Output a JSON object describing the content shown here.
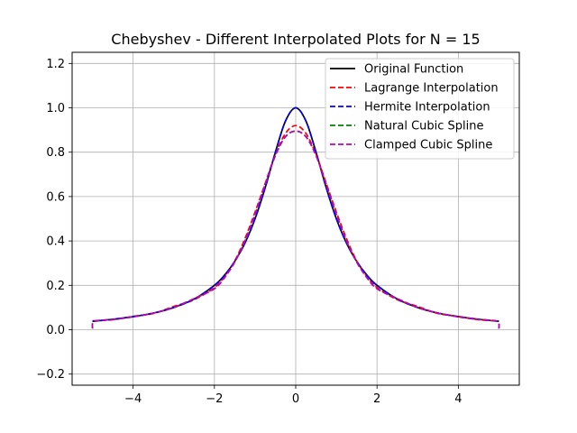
{
  "chart_data": {
    "type": "line",
    "title": "Chebyshev - Different Interpolated Plots for N = 15",
    "xlabel": "",
    "ylabel": "",
    "xlim": [
      -5.5,
      5.5
    ],
    "ylim": [
      -0.25,
      1.25
    ],
    "xticks": [
      -4,
      -2,
      0,
      2,
      4
    ],
    "yticks": [
      -0.2,
      0.0,
      0.2,
      0.4,
      0.6,
      0.8,
      1.0,
      1.2
    ],
    "grid": true,
    "legend": "top-right",
    "series": [
      {
        "name": "Original Function",
        "color": "#000000",
        "dash": "solid",
        "x": [
          -5,
          -4.5,
          -4,
          -3.5,
          -3,
          -2.5,
          -2,
          -1.75,
          -1.5,
          -1.25,
          -1,
          -0.75,
          -0.5,
          -0.25,
          0,
          0.25,
          0.5,
          0.75,
          1,
          1.25,
          1.5,
          1.75,
          2,
          2.5,
          3,
          3.5,
          4,
          4.5,
          5
        ],
        "y": [
          0.038,
          0.047,
          0.059,
          0.075,
          0.1,
          0.138,
          0.2,
          0.246,
          0.308,
          0.39,
          0.5,
          0.64,
          0.8,
          0.941,
          1.0,
          0.941,
          0.8,
          0.64,
          0.5,
          0.39,
          0.308,
          0.246,
          0.2,
          0.138,
          0.1,
          0.075,
          0.059,
          0.047,
          0.038
        ]
      },
      {
        "name": "Lagrange Interpolation",
        "color": "#ff0000",
        "dash": "dashed",
        "x": [
          -5,
          -4.5,
          -4,
          -3.5,
          -3,
          -2.5,
          -2,
          -1.75,
          -1.5,
          -1.25,
          -1,
          -0.75,
          -0.5,
          -0.25,
          0,
          0.25,
          0.5,
          0.75,
          1,
          1.25,
          1.5,
          1.75,
          2,
          2.5,
          3,
          3.5,
          4,
          4.5,
          5
        ],
        "y": [
          0.04,
          0.045,
          0.06,
          0.073,
          0.105,
          0.135,
          0.19,
          0.24,
          0.31,
          0.41,
          0.53,
          0.66,
          0.79,
          0.885,
          0.92,
          0.885,
          0.79,
          0.66,
          0.53,
          0.41,
          0.31,
          0.24,
          0.19,
          0.135,
          0.105,
          0.073,
          0.06,
          0.045,
          0.04
        ]
      },
      {
        "name": "Hermite Interpolation",
        "color": "#0000ff",
        "dash": "dashed",
        "x": [
          -5,
          -4.5,
          -4,
          -3.5,
          -3,
          -2.5,
          -2,
          -1.75,
          -1.5,
          -1.25,
          -1,
          -0.75,
          -0.5,
          -0.25,
          0,
          0.25,
          0.5,
          0.75,
          1,
          1.25,
          1.5,
          1.75,
          2,
          2.5,
          3,
          3.5,
          4,
          4.5,
          5
        ],
        "y": [
          0.038,
          0.047,
          0.059,
          0.075,
          0.1,
          0.138,
          0.2,
          0.246,
          0.308,
          0.39,
          0.5,
          0.64,
          0.8,
          0.941,
          1.0,
          0.941,
          0.8,
          0.64,
          0.5,
          0.39,
          0.308,
          0.246,
          0.2,
          0.138,
          0.1,
          0.075,
          0.059,
          0.047,
          0.038
        ]
      },
      {
        "name": "Natural Cubic Spline",
        "color": "#008000",
        "dash": "dashed",
        "x": [
          -5,
          -4.95,
          -4.5,
          -4,
          -3.5,
          -3,
          -2.5,
          -2,
          -1.75,
          -1.5,
          -1.25,
          -1,
          -0.75,
          -0.5,
          -0.25,
          0,
          0.25,
          0.5,
          0.75,
          1,
          1.25,
          1.5,
          1.75,
          2,
          2.5,
          3,
          3.5,
          4,
          4.5,
          4.95,
          5
        ],
        "y": [
          0.005,
          0.038,
          0.046,
          0.058,
          0.075,
          0.101,
          0.14,
          0.185,
          0.235,
          0.305,
          0.4,
          0.52,
          0.655,
          0.785,
          0.87,
          0.895,
          0.87,
          0.785,
          0.655,
          0.52,
          0.4,
          0.305,
          0.235,
          0.185,
          0.14,
          0.101,
          0.075,
          0.058,
          0.046,
          0.038,
          0.005
        ]
      },
      {
        "name": "Clamped Cubic Spline",
        "color": "#bf00bf",
        "dash": "dashed",
        "x": [
          -5,
          -4.95,
          -4.5,
          -4,
          -3.5,
          -3,
          -2.5,
          -2,
          -1.75,
          -1.5,
          -1.25,
          -1,
          -0.75,
          -0.5,
          -0.25,
          0,
          0.25,
          0.5,
          0.75,
          1,
          1.25,
          1.5,
          1.75,
          2,
          2.5,
          3,
          3.5,
          4,
          4.5,
          4.95,
          5
        ],
        "y": [
          0.005,
          0.038,
          0.046,
          0.058,
          0.075,
          0.101,
          0.14,
          0.185,
          0.235,
          0.305,
          0.4,
          0.52,
          0.655,
          0.785,
          0.87,
          0.895,
          0.87,
          0.785,
          0.655,
          0.52,
          0.4,
          0.305,
          0.235,
          0.185,
          0.14,
          0.101,
          0.075,
          0.058,
          0.046,
          0.038,
          0.005
        ]
      }
    ]
  }
}
